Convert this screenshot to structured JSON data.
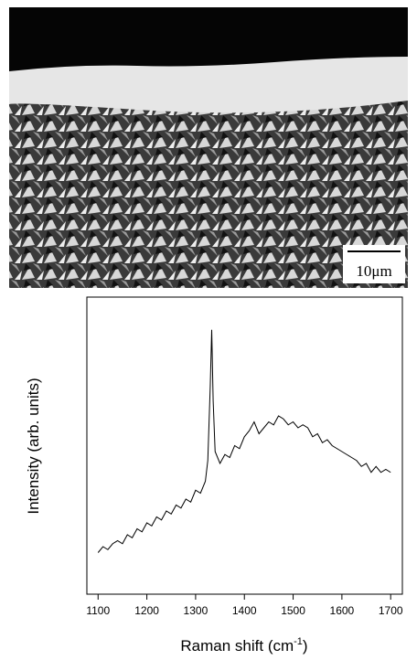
{
  "scale_bar_label": "10μm",
  "chart_data": {
    "type": "line",
    "x_label": "Raman shift  (cm",
    "x_label_sup": "-1",
    "x_label_end": ")",
    "y_label": "Intensity  (arb. units)",
    "x": [
      1100,
      1110,
      1120,
      1130,
      1140,
      1150,
      1160,
      1170,
      1180,
      1190,
      1200,
      1210,
      1220,
      1230,
      1240,
      1250,
      1260,
      1270,
      1280,
      1290,
      1300,
      1310,
      1320,
      1325,
      1330,
      1333,
      1336,
      1340,
      1350,
      1360,
      1370,
      1380,
      1390,
      1400,
      1410,
      1420,
      1430,
      1440,
      1450,
      1460,
      1470,
      1480,
      1490,
      1500,
      1510,
      1520,
      1530,
      1540,
      1550,
      1560,
      1570,
      1580,
      1590,
      1600,
      1610,
      1620,
      1630,
      1640,
      1650,
      1660,
      1670,
      1680,
      1690,
      1700
    ],
    "values": [
      14,
      16,
      15,
      17,
      18,
      17,
      20,
      19,
      22,
      21,
      24,
      23,
      26,
      25,
      28,
      27,
      30,
      29,
      32,
      31,
      35,
      34,
      38,
      45,
      70,
      89,
      65,
      48,
      44,
      47,
      46,
      50,
      49,
      53,
      55,
      58,
      54,
      56,
      58,
      57,
      60,
      59,
      57,
      58,
      56,
      57,
      56,
      53,
      54,
      51,
      52,
      50,
      49,
      48,
      47,
      46,
      45,
      43,
      44,
      41,
      43,
      41,
      42,
      41
    ],
    "color": "#000000",
    "xlim": [
      1077,
      1724
    ],
    "xticks": [
      1100,
      1200,
      1300,
      1400,
      1500,
      1600,
      1700
    ],
    "ylim": [
      0,
      100
    ]
  }
}
